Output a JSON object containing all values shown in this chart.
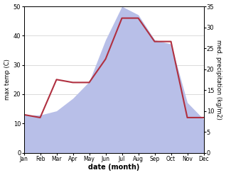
{
  "months": [
    "Jan",
    "Feb",
    "Mar",
    "Apr",
    "May",
    "Jun",
    "Jul",
    "Aug",
    "Sep",
    "Oct",
    "Nov",
    "Dec"
  ],
  "temperature": [
    13,
    12,
    25,
    24,
    24,
    32,
    46,
    46,
    38,
    38,
    12,
    12
  ],
  "precipitation": [
    9,
    9,
    10,
    13,
    17,
    27,
    35,
    33,
    27,
    26,
    12,
    8
  ],
  "temp_color": "#b03040",
  "precip_fill_color": "#b8bfe8",
  "precip_line_color": "#9099cc",
  "ylabel_left": "max temp (C)",
  "ylabel_right": "med. precipitation (kg/m2)",
  "xlabel": "date (month)",
  "ylim_left": [
    0,
    50
  ],
  "ylim_right": [
    0,
    35
  ],
  "yticks_left": [
    0,
    10,
    20,
    30,
    40,
    50
  ],
  "yticks_right": [
    0,
    5,
    10,
    15,
    20,
    25,
    30,
    35
  ],
  "scale_factor": 1.4286,
  "background_color": "#ffffff",
  "line_width": 1.5
}
